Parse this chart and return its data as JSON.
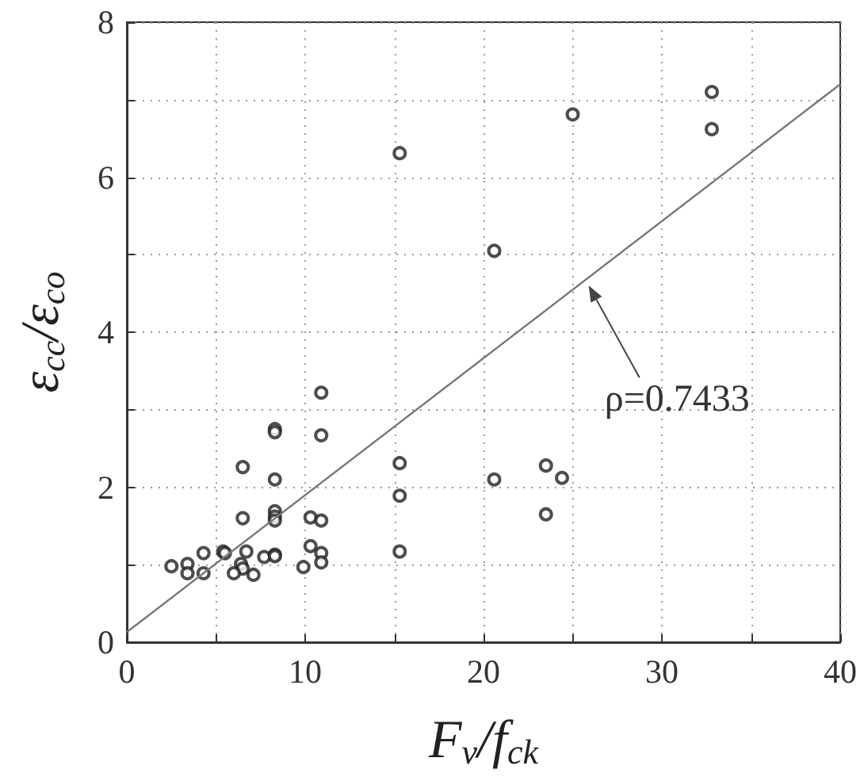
{
  "chart_data": {
    "type": "scatter",
    "xlabel": "F$_{v}$/f$_{ck}$",
    "ylabel": "ε$_{cc}$/ε$_{co}$",
    "xlim": [
      0,
      40
    ],
    "ylim": [
      0,
      8
    ],
    "xticks": [
      0,
      {
        "value": 5,
        "label": null
      },
      10,
      {
        "value": 15,
        "label": null
      },
      20,
      {
        "value": 25,
        "label": null
      },
      30,
      {
        "value": 35,
        "label": null
      },
      40
    ],
    "yticks": [
      0,
      {
        "value": 1,
        "label": null
      },
      2,
      {
        "value": 3,
        "label": null
      },
      4,
      {
        "value": 5,
        "label": null
      },
      6,
      {
        "value": 7,
        "label": null
      },
      8
    ],
    "grid": true,
    "series": [
      {
        "color": "#222222",
        "marker": "circle",
        "x": [
          15.3,
          25.0,
          32.8,
          32.8,
          20.6,
          15.3,
          15.3,
          15.3,
          20.6,
          23.5,
          24.4,
          23.5,
          10.9,
          8.3,
          8.3,
          10.9,
          6.5,
          8.3,
          6.5,
          8.3,
          8.3,
          8.3,
          10.3,
          10.9,
          2.5,
          3.4,
          3.4,
          4.3,
          4.3,
          5.4,
          5.5,
          6.7,
          6.4,
          6.5,
          6.0,
          7.1,
          7.7,
          8.3,
          8.3,
          10.3,
          10.9,
          10.9,
          9.9
        ],
        "values": [
          6.31,
          6.81,
          7.1,
          6.62,
          5.05,
          2.31,
          1.89,
          1.17,
          2.1,
          2.28,
          2.12,
          1.65,
          3.22,
          2.75,
          2.71,
          2.67,
          2.26,
          2.1,
          1.6,
          1.69,
          1.62,
          1.57,
          1.61,
          1.57,
          0.98,
          1.01,
          0.89,
          1.15,
          0.89,
          1.17,
          1.15,
          1.17,
          1.01,
          0.95,
          0.89,
          0.87,
          1.1,
          1.13,
          1.11,
          1.24,
          1.15,
          1.03,
          0.97
        ]
      },
      {
        "type": "line",
        "color": "#777777",
        "marker": "none",
        "line_style": "solid",
        "x": [
          0,
          40
        ],
        "values": [
          0.13,
          7.2
        ]
      }
    ],
    "annotations": [
      {
        "text": "ρ=0.7433",
        "x": 25.9,
        "y": 4.6
      }
    ]
  }
}
